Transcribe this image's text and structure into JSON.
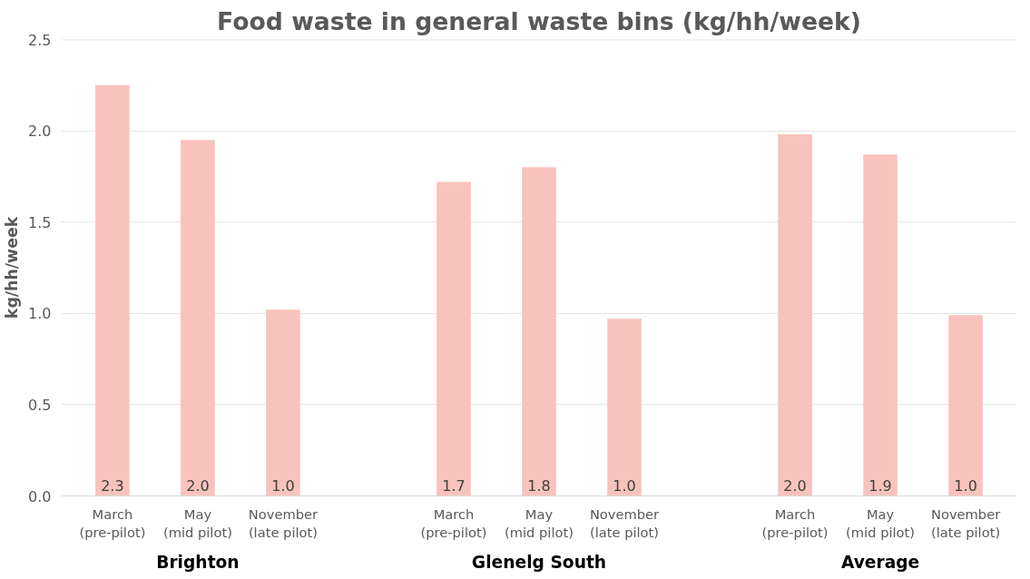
{
  "chart_data": {
    "type": "bar",
    "title": "Food waste in general waste bins (kg/hh/week)",
    "ylabel": "kg/hh/week",
    "categories": [
      "March\n(pre-pilot)",
      "May\n(mid pilot)",
      "November\n(late pilot)",
      null,
      "March\n(pre-pilot)",
      "May\n(mid pilot)",
      "November\n(late pilot)",
      null,
      "March\n(pre-pilot)",
      "May\n(mid pilot)",
      "November\n(late pilot)"
    ],
    "values": [
      2.25,
      1.95,
      1.02,
      null,
      1.72,
      1.8,
      0.97,
      null,
      1.98,
      1.87,
      0.99
    ],
    "value_labels": [
      "2.3",
      "2.0",
      "1.0",
      null,
      "1.7",
      "1.8",
      "1.0",
      null,
      "2.0",
      "1.9",
      "1.0"
    ],
    "color": "#f8c3bc",
    "annotations": [
      "Brighton",
      "Glenelg South",
      "Average"
    ],
    "ylim": [
      0,
      2.5
    ],
    "yticks": [
      {
        "value": 0,
        "label": "0.0"
      },
      0.5,
      {
        "value": 1,
        "label": "1.0"
      },
      1.5,
      {
        "value": 2,
        "label": "2.0"
      },
      2.5
    ],
    "grid": "y"
  }
}
